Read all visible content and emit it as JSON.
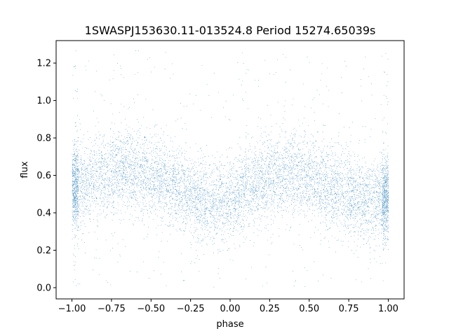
{
  "chart_data": {
    "type": "scatter",
    "title": "1SWASPJ153630.11-013524.8 Period 15274.65039s",
    "xlabel": "phase",
    "ylabel": "flux",
    "xlim": [
      -1.1,
      1.1
    ],
    "ylim": [
      -0.06,
      1.32
    ],
    "xticks": [
      -1.0,
      -0.75,
      -0.5,
      -0.25,
      0.0,
      0.25,
      0.5,
      0.75,
      1.0
    ],
    "xtick_labels": [
      "−1.00",
      "−0.75",
      "−0.50",
      "−0.25",
      "0.00",
      "0.25",
      "0.50",
      "0.75",
      "1.00"
    ],
    "yticks": [
      0.0,
      0.2,
      0.4,
      0.6,
      0.8,
      1.0,
      1.2
    ],
    "ytick_labels": [
      "0.0",
      "0.2",
      "0.4",
      "0.6",
      "0.8",
      "1.0",
      "1.2"
    ],
    "grid": false,
    "marker_color": "#1f77b4",
    "phase_range": [
      -1.0,
      1.0
    ],
    "flux_range": [
      0.0,
      1.27
    ],
    "trend": {
      "phase": [
        -1.0,
        -0.9,
        -0.8,
        -0.7,
        -0.6,
        -0.5,
        -0.4,
        -0.3,
        -0.2,
        -0.1,
        0.0,
        0.1,
        0.2,
        0.3,
        0.4,
        0.5,
        0.6,
        0.7,
        0.8,
        0.9,
        1.0
      ],
      "median_flux": [
        0.52,
        0.56,
        0.6,
        0.63,
        0.62,
        0.6,
        0.56,
        0.51,
        0.47,
        0.46,
        0.48,
        0.53,
        0.57,
        0.6,
        0.61,
        0.58,
        0.55,
        0.52,
        0.48,
        0.46,
        0.48
      ]
    },
    "scatter_sigma": 0.11
  }
}
